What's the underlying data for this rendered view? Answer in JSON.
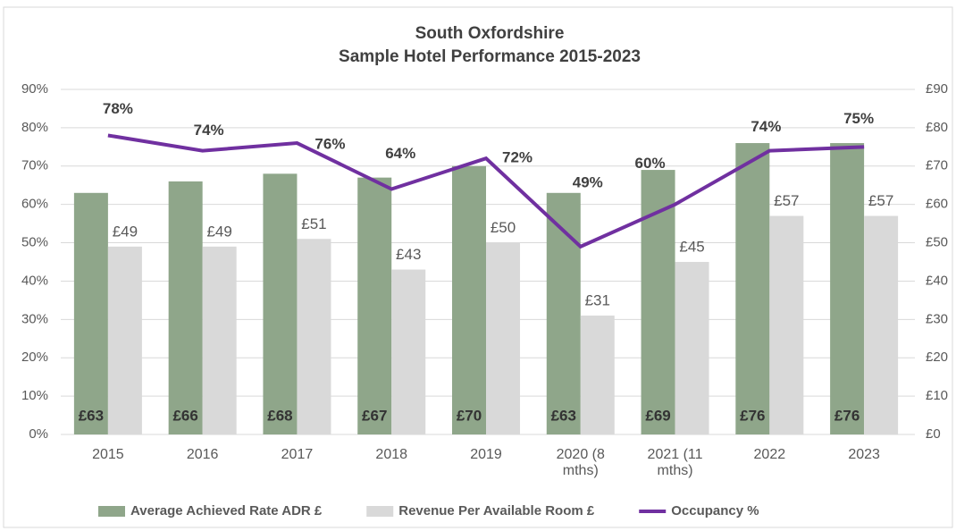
{
  "chart_data": {
    "type": "bar",
    "title": "South Oxfordshire",
    "subtitle": "Sample Hotel Performance 2015-2023",
    "categories": [
      "2015",
      "2016",
      "2017",
      "2018",
      "2019",
      "2020 (8 mths)",
      "2021 (11 mths)",
      "2022",
      "2023"
    ],
    "series": [
      {
        "name": "Average Achieved Rate ADR £",
        "type": "bar",
        "axis": "y2",
        "color": "#8fa68a",
        "values": [
          63,
          66,
          68,
          67,
          70,
          63,
          69,
          76,
          76
        ],
        "value_labels": [
          "£63",
          "£66",
          "£68",
          "£67",
          "£70",
          "£63",
          "£69",
          "£76",
          "£76"
        ]
      },
      {
        "name": "Revenue Per Available Room £",
        "type": "bar",
        "axis": "y2",
        "color": "#d9d9d9",
        "values": [
          49,
          49,
          51,
          43,
          50,
          31,
          45,
          57,
          57
        ],
        "value_labels": [
          "£49",
          "£49",
          "£51",
          "£43",
          "£50",
          "£31",
          "£45",
          "£57",
          "£57"
        ]
      },
      {
        "name": "Occupancy %",
        "type": "line",
        "axis": "y",
        "color": "#7030a0",
        "values": [
          78,
          74,
          76,
          64,
          72,
          49,
          60,
          74,
          75
        ],
        "value_labels": [
          "78%",
          "74%",
          "76%",
          "64%",
          "72%",
          "49%",
          "60%",
          "74%",
          "75%"
        ]
      }
    ],
    "ylim": [
      0,
      90
    ],
    "yticks": [
      {
        "value": 0,
        "label": "0%"
      },
      {
        "value": 10,
        "label": "10%"
      },
      {
        "value": 20,
        "label": "20%"
      },
      {
        "value": 30,
        "label": "30%"
      },
      {
        "value": 40,
        "label": "40%"
      },
      {
        "value": 50,
        "label": "50%"
      },
      {
        "value": 60,
        "label": "60%"
      },
      {
        "value": 70,
        "label": "70%"
      },
      {
        "value": 80,
        "label": "80%"
      },
      {
        "value": 90,
        "label": "90%"
      }
    ],
    "y2lim": [
      0,
      90
    ],
    "y2ticks": [
      {
        "value": 0,
        "label": "£0"
      },
      {
        "value": 10,
        "label": "£10"
      },
      {
        "value": 20,
        "label": "£20"
      },
      {
        "value": 30,
        "label": "£30"
      },
      {
        "value": 40,
        "label": "£40"
      },
      {
        "value": 50,
        "label": "£50"
      },
      {
        "value": 60,
        "label": "£60"
      },
      {
        "value": 70,
        "label": "£70"
      },
      {
        "value": 80,
        "label": "£80"
      },
      {
        "value": 90,
        "label": "£90"
      }
    ],
    "legend": "bottom"
  }
}
